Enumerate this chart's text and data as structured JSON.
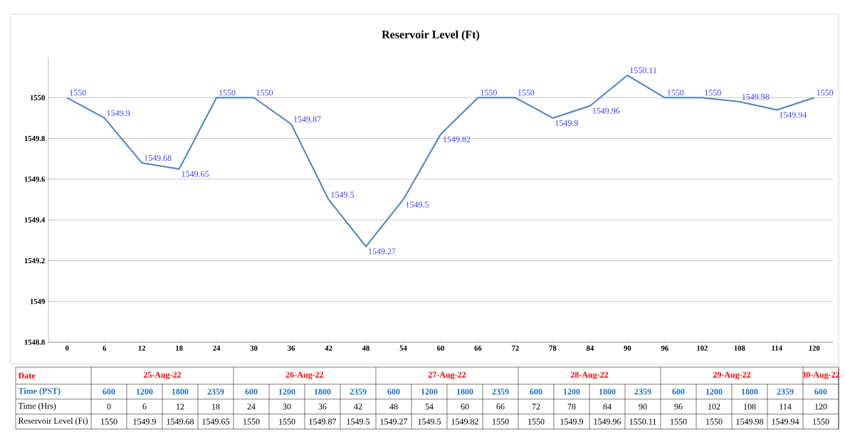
{
  "chart_data": {
    "type": "line",
    "title": "Reservoir Level (Ft)",
    "x": [
      0,
      6,
      12,
      18,
      24,
      30,
      36,
      42,
      48,
      54,
      60,
      66,
      72,
      78,
      84,
      90,
      96,
      102,
      108,
      114,
      120
    ],
    "values": [
      1550,
      1549.9,
      1549.68,
      1549.65,
      1550,
      1550,
      1549.87,
      1549.5,
      1549.27,
      1549.5,
      1549.82,
      1550,
      1550,
      1549.9,
      1549.96,
      1550.11,
      1550,
      1550,
      1549.98,
      1549.94,
      1550
    ],
    "color": "#4f81bd",
    "xlim": [
      -3,
      123
    ],
    "xticks": [
      0,
      6,
      12,
      18,
      24,
      30,
      36,
      42,
      48,
      54,
      60,
      66,
      72,
      78,
      84,
      90,
      96,
      102,
      108,
      114,
      120
    ],
    "ylim": [
      1548.8,
      1550.2
    ],
    "yticks": [
      1548.8,
      1549,
      1549.2,
      1549.4,
      1549.6,
      1549.8,
      1550
    ],
    "grid": "y",
    "marker": "none",
    "line_style": "solid",
    "data_labels": true,
    "annotations": [
      "Date",
      "Time  (PST)",
      "Time (Hrs)",
      "Reservoir Level (Ft)",
      "25-Aug-22",
      "26-Aug-22",
      "27-Aug-22",
      "28-Aug-22",
      "29-Aug-22",
      "30-Aug-22",
      "600",
      "1200",
      "1800",
      "2359",
      "600",
      "1200",
      "1800",
      "2359",
      "600",
      "1200",
      "1800",
      "2359",
      "600",
      "1200",
      "1800",
      "2359",
      "600",
      "1200",
      "1800",
      "2359",
      "600",
      "0",
      "6",
      "12",
      "18",
      "24",
      "30",
      "36",
      "42",
      "48",
      "54",
      "60",
      "66",
      "72",
      "78",
      "84",
      "90",
      "96",
      "102",
      "108",
      "114",
      "120",
      "1550",
      "1549.9",
      "1549.68",
      "1549.65",
      "1550",
      "1550",
      "1549.87",
      "1549.5",
      "1549.27",
      "1549.5",
      "1549.82",
      "1550",
      "1550",
      "1549.9",
      "1549.96",
      "1550.11",
      "1550",
      "1550",
      "1549.98",
      "1549.94",
      "1550"
    ]
  }
}
